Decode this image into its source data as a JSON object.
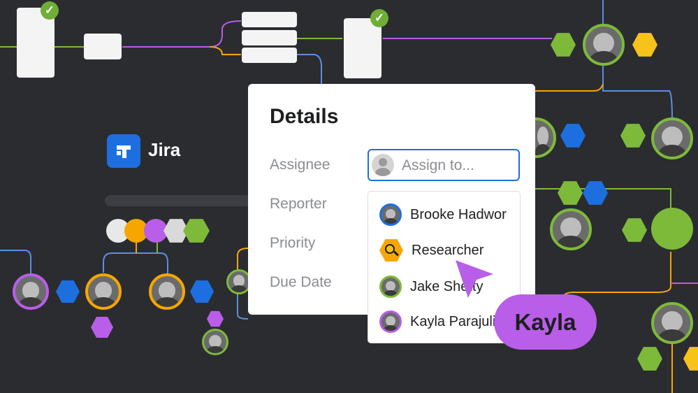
{
  "app": {
    "name": "Jira",
    "logo_color": "#1d6fe0"
  },
  "details": {
    "title": "Details",
    "fields": [
      {
        "label": "Assignee"
      },
      {
        "label": "Reporter"
      },
      {
        "label": "Priority"
      },
      {
        "label": "Due Date"
      }
    ],
    "assignee_input": {
      "placeholder": "Assign to...",
      "value": ""
    }
  },
  "dropdown": {
    "items": [
      {
        "label": "Brooke Hadwor",
        "ring": "#1d6fe0"
      },
      {
        "label": "Researcher",
        "icon": "search-icon",
        "ring": "#f7a600"
      },
      {
        "label": "Jake Shetty",
        "ring": "#7dba3a"
      },
      {
        "label": "Kayla Parajuli",
        "ring": "#b85ee8"
      }
    ]
  },
  "cursor_tag": {
    "label": "Kayla",
    "color": "#b85ee8"
  },
  "colors": {
    "background": "#2b2c30",
    "green": "#7dba3a",
    "blue": "#1d6fe0",
    "yellow": "#f7c21a",
    "purple": "#b85ee8",
    "orange": "#f7a600"
  }
}
